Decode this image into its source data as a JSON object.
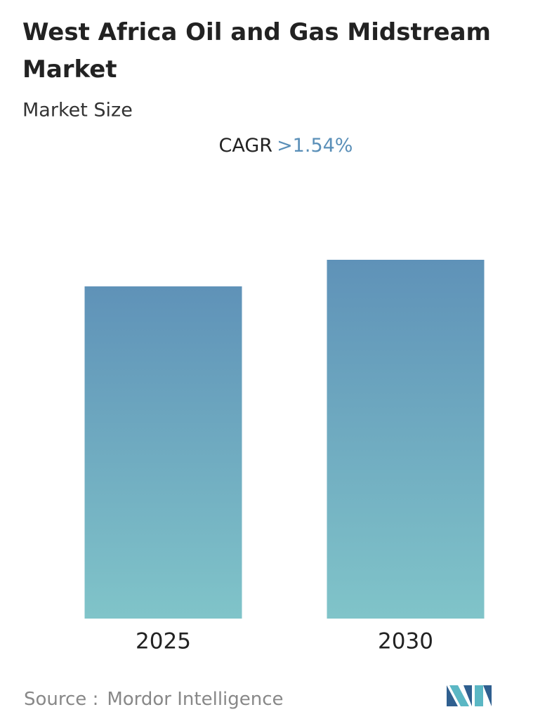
{
  "chart_data": {
    "type": "bar",
    "title": "West Africa Oil and Gas Midstream Market",
    "subtitle": "Market Size",
    "cagr_label": "CAGR",
    "cagr_value": ">1.54%",
    "categories": [
      "2025",
      "2030"
    ],
    "values": [
      92.6,
      100
    ],
    "ylim": [
      0,
      100
    ],
    "gradient": [
      "#5f92b8",
      "#80c4c9"
    ],
    "source_label": "Source :",
    "source": "Mordor Intelligence"
  }
}
